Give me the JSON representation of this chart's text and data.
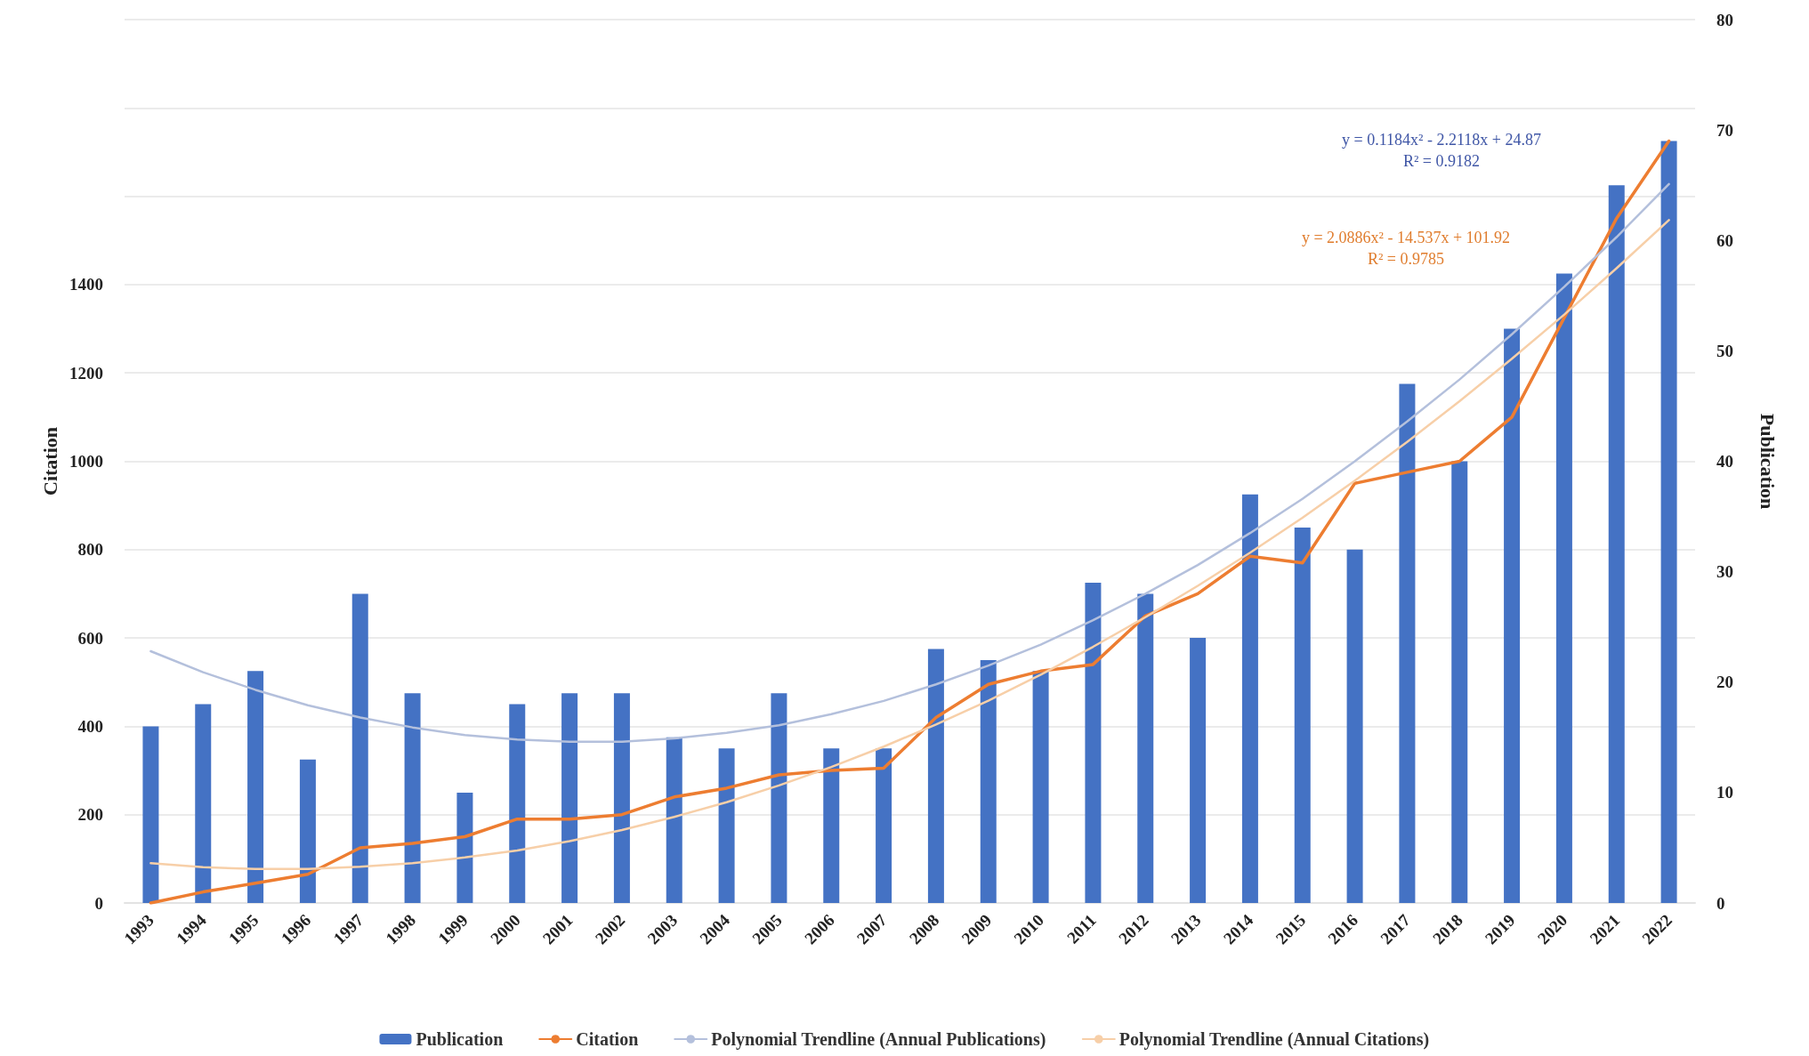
{
  "chart_data": {
    "type": "bar",
    "categories": [
      "1993",
      "1994",
      "1995",
      "1996",
      "1997",
      "1998",
      "1999",
      "2000",
      "2001",
      "2002",
      "2003",
      "2004",
      "2005",
      "2006",
      "2007",
      "2008",
      "2009",
      "2010",
      "2011",
      "2012",
      "2013",
      "2014",
      "2015",
      "2016",
      "2017",
      "2018",
      "2019",
      "2020",
      "2021",
      "2022"
    ],
    "series": [
      {
        "name": "Publication",
        "axis": "y2",
        "color": "#4472c4",
        "values": [
          16,
          18,
          21,
          13,
          28,
          19,
          10,
          18,
          19,
          19,
          15,
          14,
          19,
          14,
          14,
          23,
          22,
          21,
          29,
          28,
          24,
          37,
          34,
          32,
          47,
          40,
          52,
          57,
          65,
          69
        ]
      },
      {
        "name": "Citation",
        "type": "line",
        "color": "#ed7d31",
        "values": [
          0,
          25,
          45,
          65,
          125,
          135,
          150,
          190,
          190,
          200,
          240,
          260,
          290,
          300,
          305,
          420,
          495,
          525,
          540,
          650,
          700,
          785,
          770,
          950,
          975,
          1000,
          1100,
          1325,
          1550,
          1725
        ]
      },
      {
        "name": "Polynomial Trendline (Annual Publications)",
        "type": "line",
        "axis": "y2",
        "color": "#b4c0dc",
        "values": [
          22.8,
          20.9,
          19.3,
          17.9,
          16.8,
          15.9,
          15.2,
          14.8,
          14.6,
          14.6,
          14.9,
          15.4,
          16.1,
          17.1,
          18.3,
          19.8,
          21.5,
          23.4,
          25.6,
          28.0,
          30.6,
          33.5,
          36.6,
          40.0,
          43.6,
          47.4,
          51.5,
          55.8,
          60.3,
          65.1
        ]
      },
      {
        "name": "Polynomial Trendline (Annual Citations)",
        "type": "line",
        "color": "#f7cfa8",
        "values": [
          90,
          81,
          77,
          77,
          82,
          90,
          103,
          119,
          140,
          165,
          195,
          228,
          266,
          308,
          354,
          404,
          458,
          517,
          580,
          647,
          718,
          793,
          872,
          956,
          1044,
          1136,
          1232,
          1332,
          1437,
          1546
        ]
      }
    ],
    "ylabel": "Citation",
    "y2label": "Publication",
    "ylim": [
      0,
      2000
    ],
    "yticks": [
      0,
      200,
      400,
      600,
      800,
      1000,
      1200,
      1400,
      {
        "value": 1600,
        "label": null
      },
      {
        "value": 1800,
        "label": null
      },
      {
        "value": 2000,
        "label": null
      }
    ],
    "y2lim": [
      0,
      80
    ],
    "y2ticks": [
      0,
      10,
      20,
      30,
      40,
      50,
      60,
      70,
      80
    ],
    "grid": "y",
    "legend": "bottom",
    "annotations": [
      "y = 0.1184x² - 2.2118x + 24.87\nR² = 0.9182",
      "y = 2.0886x² - 14.537x + 101.92\nR² = 0.9785"
    ]
  }
}
